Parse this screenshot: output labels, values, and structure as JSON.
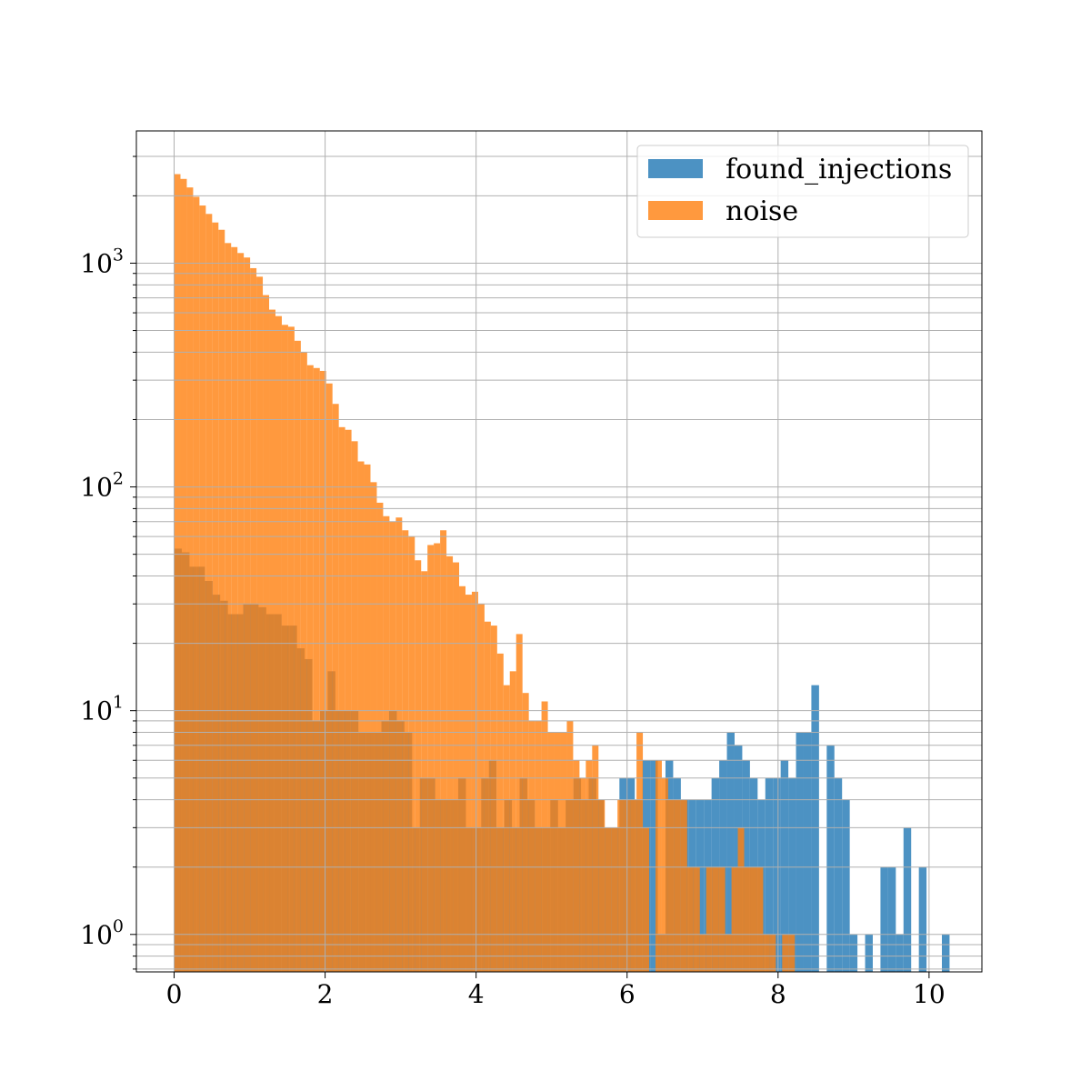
{
  "chart_data": {
    "type": "bar",
    "title": "",
    "xlabel": "",
    "ylabel": "",
    "xlim": [
      -0.5,
      10.7
    ],
    "ylim": [
      0.68,
      3900
    ],
    "yscale": "log",
    "grid": true,
    "legend_position": "top-right",
    "x_ticks": [
      "0",
      "2",
      "4",
      "6",
      "8",
      "10"
    ],
    "y_ticks": [
      {
        "base": "10",
        "exp": "0",
        "value": 1
      },
      {
        "base": "10",
        "exp": "1",
        "value": 10
      },
      {
        "base": "10",
        "exp": "2",
        "value": 100
      },
      {
        "base": "10",
        "exp": "3",
        "value": 1000
      }
    ],
    "series": [
      {
        "name": "found_injections",
        "color": "#1f77b4",
        "opacity": 0.8,
        "bin_start": 0.0,
        "bin_width": 0.1017,
        "values": [
          53,
          51,
          44,
          44,
          38,
          33,
          31,
          27,
          27,
          30,
          30,
          29,
          27,
          27,
          24,
          24,
          19,
          17,
          9,
          10,
          15,
          10,
          10,
          10,
          8,
          8,
          8,
          9,
          10,
          9,
          8,
          3,
          5,
          5,
          4,
          4,
          4,
          5,
          3,
          3,
          5,
          6,
          3,
          4,
          3,
          5,
          4,
          3,
          3,
          4,
          3,
          4,
          5,
          4,
          5,
          4,
          3,
          3,
          5,
          5,
          4,
          6,
          6,
          1,
          6,
          5,
          4,
          4,
          4,
          4,
          5,
          6,
          8,
          7,
          6,
          5,
          4,
          5,
          5,
          6,
          5,
          8,
          8,
          13,
          0,
          7,
          5,
          4,
          1,
          0,
          1,
          0,
          2,
          2,
          1,
          3,
          0,
          2,
          0,
          0,
          1
        ]
      },
      {
        "name": "noise",
        "color": "#ff7f0e",
        "opacity": 0.8,
        "bin_start": 0.0,
        "bin_width": 0.0839,
        "values": [
          2500,
          2380,
          2180,
          1980,
          1810,
          1660,
          1520,
          1410,
          1230,
          1180,
          1110,
          1060,
          950,
          870,
          720,
          620,
          580,
          530,
          520,
          450,
          400,
          350,
          340,
          330,
          290,
          235,
          185,
          180,
          160,
          130,
          126,
          105,
          85,
          74,
          70,
          73,
          64,
          60,
          47,
          42,
          55,
          56,
          64,
          49,
          46,
          36,
          33,
          34,
          30,
          25,
          24,
          18,
          13,
          15,
          22,
          12,
          9,
          9,
          11,
          8,
          8,
          8,
          9,
          6,
          5,
          6,
          7,
          4,
          3,
          3,
          4,
          4,
          4,
          8,
          3,
          0,
          6,
          5,
          4,
          4,
          4,
          2,
          2,
          1,
          2,
          2,
          2,
          1,
          2,
          3,
          2,
          2,
          2,
          1,
          1,
          0,
          1,
          1
        ]
      }
    ]
  }
}
